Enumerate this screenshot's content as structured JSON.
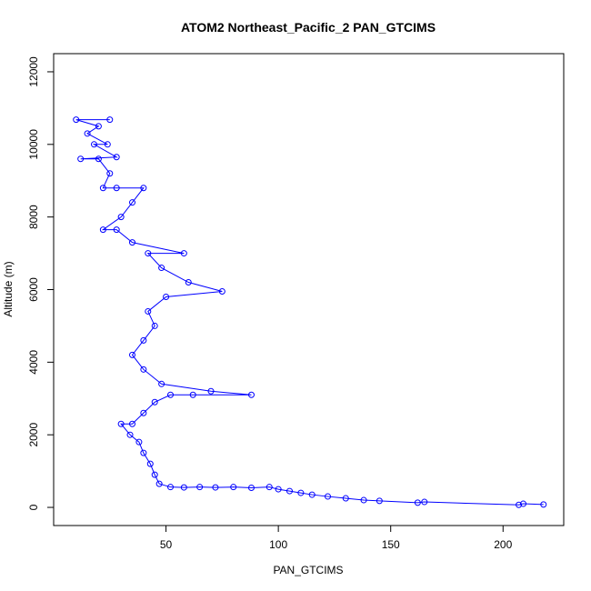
{
  "chart_data": {
    "type": "scatter",
    "title": "ATOM2 Northeast_Pacific_2 PAN_GTCIMS",
    "xlabel": "PAN_GTCIMS",
    "ylabel": "Altitude (m)",
    "xlim": [
      0,
      227
    ],
    "ylim": [
      -500,
      12500
    ],
    "x_ticks": [
      50,
      100,
      150,
      200
    ],
    "y_ticks": [
      0,
      2000,
      4000,
      6000,
      8000,
      10000,
      12000
    ],
    "grid": false,
    "marker": "open-circle",
    "connected": true,
    "series_color": "#0000ff",
    "series": [
      {
        "values": [
          {
            "x": 218,
            "y": 80
          },
          {
            "x": 209,
            "y": 100
          },
          {
            "x": 207,
            "y": 70
          },
          {
            "x": 165,
            "y": 150
          },
          {
            "x": 162,
            "y": 130
          },
          {
            "x": 145,
            "y": 180
          },
          {
            "x": 138,
            "y": 200
          },
          {
            "x": 130,
            "y": 250
          },
          {
            "x": 122,
            "y": 300
          },
          {
            "x": 115,
            "y": 350
          },
          {
            "x": 110,
            "y": 400
          },
          {
            "x": 105,
            "y": 450
          },
          {
            "x": 100,
            "y": 500
          },
          {
            "x": 96,
            "y": 560
          },
          {
            "x": 88,
            "y": 540
          },
          {
            "x": 80,
            "y": 560
          },
          {
            "x": 72,
            "y": 550
          },
          {
            "x": 65,
            "y": 560
          },
          {
            "x": 58,
            "y": 550
          },
          {
            "x": 52,
            "y": 560
          },
          {
            "x": 47,
            "y": 650
          },
          {
            "x": 45,
            "y": 900
          },
          {
            "x": 43,
            "y": 1200
          },
          {
            "x": 40,
            "y": 1500
          },
          {
            "x": 38,
            "y": 1800
          },
          {
            "x": 34,
            "y": 2000
          },
          {
            "x": 30,
            "y": 2300
          },
          {
            "x": 35,
            "y": 2300
          },
          {
            "x": 40,
            "y": 2600
          },
          {
            "x": 45,
            "y": 2900
          },
          {
            "x": 52,
            "y": 3100
          },
          {
            "x": 62,
            "y": 3100
          },
          {
            "x": 88,
            "y": 3100
          },
          {
            "x": 70,
            "y": 3200
          },
          {
            "x": 48,
            "y": 3400
          },
          {
            "x": 40,
            "y": 3800
          },
          {
            "x": 35,
            "y": 4200
          },
          {
            "x": 40,
            "y": 4600
          },
          {
            "x": 45,
            "y": 5000
          },
          {
            "x": 42,
            "y": 5400
          },
          {
            "x": 50,
            "y": 5800
          },
          {
            "x": 75,
            "y": 5950
          },
          {
            "x": 60,
            "y": 6200
          },
          {
            "x": 48,
            "y": 6600
          },
          {
            "x": 42,
            "y": 7000
          },
          {
            "x": 58,
            "y": 7000
          },
          {
            "x": 35,
            "y": 7300
          },
          {
            "x": 28,
            "y": 7650
          },
          {
            "x": 22,
            "y": 7650
          },
          {
            "x": 30,
            "y": 8000
          },
          {
            "x": 35,
            "y": 8400
          },
          {
            "x": 40,
            "y": 8800
          },
          {
            "x": 28,
            "y": 8800
          },
          {
            "x": 22,
            "y": 8800
          },
          {
            "x": 25,
            "y": 9200
          },
          {
            "x": 20,
            "y": 9600
          },
          {
            "x": 12,
            "y": 9600
          },
          {
            "x": 28,
            "y": 9650
          },
          {
            "x": 18,
            "y": 10000
          },
          {
            "x": 24,
            "y": 10000
          },
          {
            "x": 15,
            "y": 10300
          },
          {
            "x": 20,
            "y": 10500
          },
          {
            "x": 10,
            "y": 10680
          },
          {
            "x": 25,
            "y": 10680
          }
        ]
      }
    ]
  }
}
